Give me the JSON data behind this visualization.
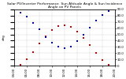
{
  "title": "Solar PV/Inverter Performance  Sun Altitude Angle & Sun Incidence Angle on PV Panels",
  "ylim": [
    0,
    90
  ],
  "xlim": [
    4,
    20
  ],
  "background_color": "#ffffff",
  "grid_color": "#aaaaaa",
  "sun_altitude": {
    "x": [
      5,
      6,
      7,
      8,
      9,
      10,
      11,
      12,
      13,
      14,
      15,
      16,
      17,
      18,
      19
    ],
    "y": [
      2,
      10,
      22,
      35,
      47,
      57,
      63,
      65,
      62,
      55,
      45,
      33,
      20,
      9,
      1
    ],
    "color": "#cc0000",
    "marker": "s",
    "markersize": 1.5
  },
  "sun_incidence": {
    "x": [
      5,
      6,
      7,
      8,
      9,
      10,
      11,
      12,
      13,
      14,
      15,
      16,
      17,
      18,
      19
    ],
    "y": [
      85,
      78,
      68,
      58,
      46,
      37,
      30,
      28,
      31,
      39,
      49,
      61,
      72,
      81,
      87
    ],
    "color": "#0000cc",
    "marker": "s",
    "markersize": 1.5
  },
  "ytick_positions": [
    90,
    80,
    70,
    60,
    50,
    40,
    30,
    20,
    10,
    0
  ],
  "ytick_labels": [
    "90.0",
    "80.0",
    "70.0",
    "60.0",
    "50.0",
    "40.0",
    "30.0",
    "20.0",
    "10.0",
    "0"
  ],
  "xtick_positions": [
    4,
    6,
    8,
    10,
    12,
    14,
    16,
    18,
    20
  ],
  "xtick_labels": [
    "04:00",
    "06:00",
    "08:00",
    "10:00",
    "12:00",
    "14:00",
    "16:00",
    "18:00",
    "20:00"
  ],
  "title_fontsize": 3.2,
  "tick_fontsize": 2.8,
  "ylabel_left": "deg",
  "ylabel_fontsize": 3.0
}
